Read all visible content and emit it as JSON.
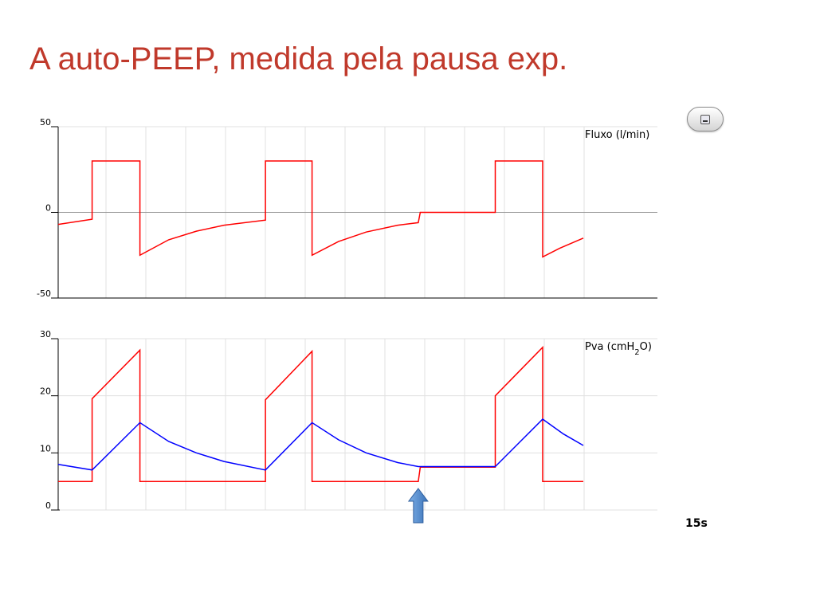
{
  "slide": {
    "title": "A auto-PEEP, medida pela pausa exp."
  },
  "colors": {
    "title": "#c0392b",
    "red_trace": "#ff0000",
    "blue_trace": "#0000ff",
    "grid": "#e0e0e0",
    "arrow": "#4a86c8"
  },
  "toolbar": {
    "icon": "window-icon"
  },
  "chart_data": [
    {
      "type": "line",
      "ylabel": "Fluxo (l/min)",
      "ylim": [
        -50,
        50
      ],
      "yticks": [
        "50",
        "0",
        "-50"
      ],
      "xlim": [
        0,
        15
      ],
      "grid": true,
      "series": [
        {
          "color": "#ff0000",
          "points": [
            [
              0,
              -7
            ],
            [
              0.86,
              -4
            ],
            [
              0.86,
              30
            ],
            [
              2.07,
              30
            ],
            [
              2.07,
              -25
            ],
            [
              2.8,
              -16
            ],
            [
              3.5,
              -11
            ],
            [
              4.2,
              -7.5
            ],
            [
              5.25,
              -4.5
            ],
            [
              5.25,
              30
            ],
            [
              6.43,
              30
            ],
            [
              6.43,
              -25
            ],
            [
              7.1,
              -17
            ],
            [
              7.8,
              -11.5
            ],
            [
              8.6,
              -7.5
            ],
            [
              9.12,
              -6
            ],
            [
              9.17,
              0
            ],
            [
              11.07,
              0
            ],
            [
              11.07,
              30
            ],
            [
              12.27,
              30
            ],
            [
              12.27,
              -26
            ],
            [
              12.7,
              -21
            ],
            [
              13.3,
              -15
            ]
          ]
        }
      ]
    },
    {
      "type": "line",
      "ylabel": "Pva (cmH2O)",
      "ylim": [
        0,
        30
      ],
      "yticks": [
        "30",
        "20",
        "10",
        "0"
      ],
      "xlim": [
        0,
        15
      ],
      "xlabel": "15s",
      "grid": true,
      "series": [
        {
          "color": "#ff0000",
          "points": [
            [
              0,
              5
            ],
            [
              0.86,
              5
            ],
            [
              0.86,
              19.5
            ],
            [
              2.07,
              28
            ],
            [
              2.07,
              5
            ],
            [
              5.25,
              5
            ],
            [
              5.25,
              19.3
            ],
            [
              6.43,
              27.8
            ],
            [
              6.43,
              5
            ],
            [
              9.12,
              5
            ],
            [
              9.17,
              7.5
            ],
            [
              11.07,
              7.5
            ],
            [
              11.07,
              20
            ],
            [
              12.27,
              28.5
            ],
            [
              12.27,
              5
            ],
            [
              13.3,
              5
            ]
          ]
        },
        {
          "color": "#0000ff",
          "points": [
            [
              0,
              8
            ],
            [
              0.86,
              7
            ],
            [
              2.07,
              15.3
            ],
            [
              2.8,
              12
            ],
            [
              3.5,
              10
            ],
            [
              4.2,
              8.5
            ],
            [
              5.25,
              7
            ],
            [
              6.43,
              15.3
            ],
            [
              7.1,
              12.3
            ],
            [
              7.8,
              10
            ],
            [
              8.6,
              8.3
            ],
            [
              9.12,
              7.6
            ],
            [
              11.07,
              7.6
            ],
            [
              12.27,
              15.9
            ],
            [
              12.8,
              13.3
            ],
            [
              13.3,
              11.3
            ]
          ]
        }
      ],
      "annotation": {
        "type": "arrow",
        "x": 9.12,
        "direction": "up"
      }
    }
  ]
}
